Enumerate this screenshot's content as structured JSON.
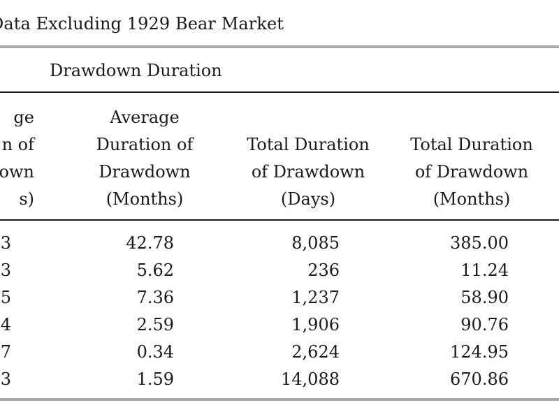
{
  "table": {
    "title": "Data Excluding 1929 Bear Market",
    "group_title": "Drawdown Duration",
    "columns": [
      [
        "ge",
        "n of",
        "own",
        "s)"
      ],
      [
        "Average",
        "Duration of",
        "Drawdown",
        "(Months)"
      ],
      [
        "Total Duration",
        "of Drawdown",
        "(Days)"
      ],
      [
        "Total Duration",
        "of Drawdown",
        "(Months)"
      ]
    ],
    "rows": [
      [
        "3",
        "42.78",
        "8,085",
        "385.00"
      ],
      [
        "3",
        "5.62",
        "236",
        "11.24"
      ],
      [
        "5",
        "7.36",
        "1,237",
        "58.90"
      ],
      [
        "4",
        "2.59",
        "1,906",
        "90.76"
      ],
      [
        "7",
        "0.34",
        "2,624",
        "124.95"
      ],
      [
        "3",
        "1.59",
        "14,088",
        "670.86"
      ]
    ]
  }
}
